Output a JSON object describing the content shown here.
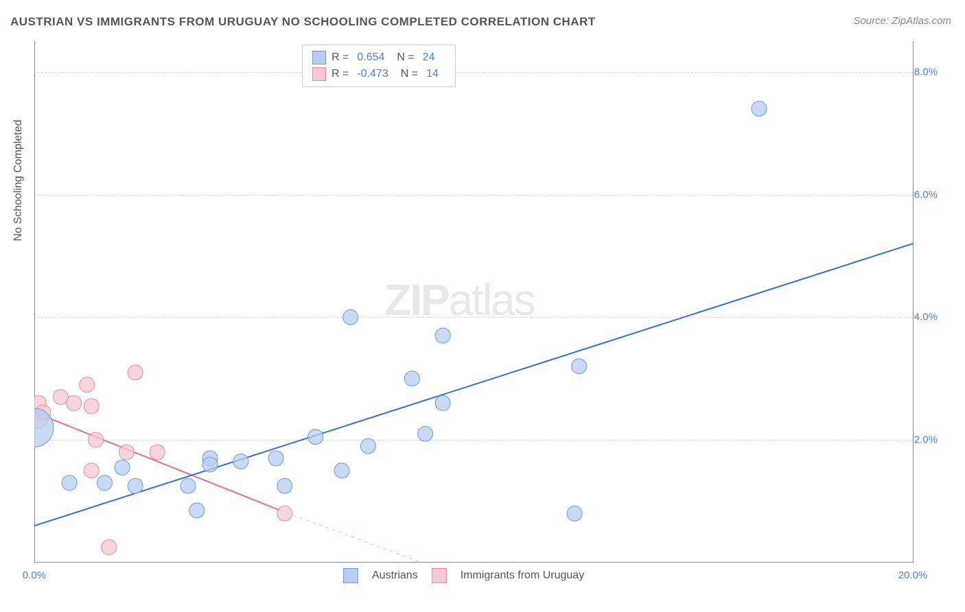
{
  "title": "AUSTRIAN VS IMMIGRANTS FROM URUGUAY NO SCHOOLING COMPLETED CORRELATION CHART",
  "source": "Source: ZipAtlas.com",
  "yaxis_label": "No Schooling Completed",
  "watermark": "ZIPatlas",
  "chart": {
    "type": "scatter",
    "xlim": [
      0,
      20
    ],
    "ylim": [
      0,
      8.5
    ],
    "x_ticks": [
      {
        "v": 0,
        "label": "0.0%"
      },
      {
        "v": 20,
        "label": "20.0%"
      }
    ],
    "y_ticks": [
      {
        "v": 2,
        "label": "2.0%"
      },
      {
        "v": 4,
        "label": "4.0%"
      },
      {
        "v": 6,
        "label": "6.0%"
      },
      {
        "v": 8,
        "label": "8.0%"
      }
    ],
    "background_color": "#ffffff",
    "grid_color": "#dddddd",
    "series": [
      {
        "name": "Austrians",
        "color_fill": "#b7cef0",
        "color_stroke": "#6a9be0",
        "R": "0.654",
        "N": "24",
        "line": {
          "x1": 0,
          "y1": 0.6,
          "x2": 20,
          "y2": 5.2,
          "stroke": "#2e6fd9",
          "width": 2
        },
        "marker_r": 11,
        "points": [
          {
            "x": 0.0,
            "y": 2.2,
            "r": 28
          },
          {
            "x": 0.8,
            "y": 1.3,
            "r": 11
          },
          {
            "x": 1.6,
            "y": 1.3,
            "r": 11
          },
          {
            "x": 2.0,
            "y": 1.55,
            "r": 11
          },
          {
            "x": 2.3,
            "y": 1.25,
            "r": 11
          },
          {
            "x": 3.5,
            "y": 1.25,
            "r": 11
          },
          {
            "x": 3.7,
            "y": 0.85,
            "r": 11
          },
          {
            "x": 4.0,
            "y": 1.7,
            "r": 11
          },
          {
            "x": 4.0,
            "y": 1.6,
            "r": 11
          },
          {
            "x": 4.7,
            "y": 1.65,
            "r": 11
          },
          {
            "x": 5.5,
            "y": 1.7,
            "r": 11
          },
          {
            "x": 5.7,
            "y": 1.25,
            "r": 11
          },
          {
            "x": 6.4,
            "y": 2.05,
            "r": 11
          },
          {
            "x": 7.0,
            "y": 1.5,
            "r": 11
          },
          {
            "x": 7.6,
            "y": 1.9,
            "r": 11
          },
          {
            "x": 7.2,
            "y": 4.0,
            "r": 11
          },
          {
            "x": 8.6,
            "y": 3.0,
            "r": 11
          },
          {
            "x": 8.9,
            "y": 2.1,
            "r": 11
          },
          {
            "x": 9.3,
            "y": 2.6,
            "r": 11
          },
          {
            "x": 9.3,
            "y": 3.7,
            "r": 11
          },
          {
            "x": 12.3,
            "y": 0.8,
            "r": 11
          },
          {
            "x": 12.4,
            "y": 3.2,
            "r": 11
          },
          {
            "x": 16.5,
            "y": 7.4,
            "r": 11
          }
        ]
      },
      {
        "name": "Immigrants from Uruguay",
        "color_fill": "#f6c8d1",
        "color_stroke": "#e98ba0",
        "R": "-0.473",
        "N": "14",
        "line": {
          "x1": 0,
          "y1": 2.45,
          "x2": 5.6,
          "y2": 0.85,
          "stroke": "#e86b87",
          "width": 2
        },
        "line_dashed": {
          "x1": 5.6,
          "y1": 0.85,
          "x2": 9.2,
          "y2": -0.1,
          "stroke": "#f4bcc8",
          "width": 1
        },
        "marker_r": 11,
        "points": [
          {
            "x": 0.1,
            "y": 2.35,
            "r": 14
          },
          {
            "x": 0.1,
            "y": 2.6,
            "r": 11
          },
          {
            "x": 0.2,
            "y": 2.45,
            "r": 11
          },
          {
            "x": 0.6,
            "y": 2.7,
            "r": 11
          },
          {
            "x": 0.9,
            "y": 2.6,
            "r": 11
          },
          {
            "x": 1.2,
            "y": 2.9,
            "r": 11
          },
          {
            "x": 1.3,
            "y": 2.55,
            "r": 11
          },
          {
            "x": 1.3,
            "y": 1.5,
            "r": 11
          },
          {
            "x": 1.4,
            "y": 2.0,
            "r": 11
          },
          {
            "x": 1.7,
            "y": 0.25,
            "r": 11
          },
          {
            "x": 2.1,
            "y": 1.8,
            "r": 11
          },
          {
            "x": 2.3,
            "y": 3.1,
            "r": 11
          },
          {
            "x": 2.8,
            "y": 1.8,
            "r": 11
          },
          {
            "x": 5.7,
            "y": 0.8,
            "r": 11
          }
        ]
      }
    ]
  }
}
